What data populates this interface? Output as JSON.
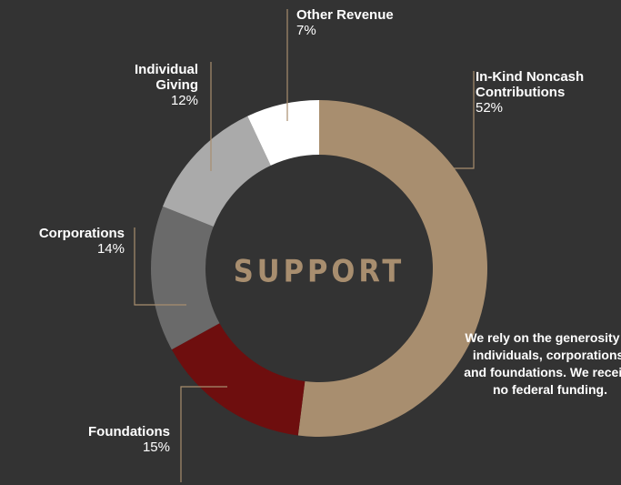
{
  "chart_data": {
    "type": "donut",
    "center_label": "SUPPORT",
    "categories": [
      "In-Kind Noncash Contributions",
      "Foundations",
      "Corporations",
      "Individual Giving",
      "Other Revenue"
    ],
    "values": [
      52,
      15,
      14,
      12,
      7
    ],
    "value_labels": [
      "52%",
      "15%",
      "14%",
      "12%",
      "7%"
    ],
    "colors": [
      "#a88e6f",
      "#6e0e0e",
      "#6a6a6a",
      "#aaaaaa",
      "#ffffff"
    ],
    "note": "We rely on the generosity of individuals, corporations, and foundations. We receive no federal funding."
  }
}
